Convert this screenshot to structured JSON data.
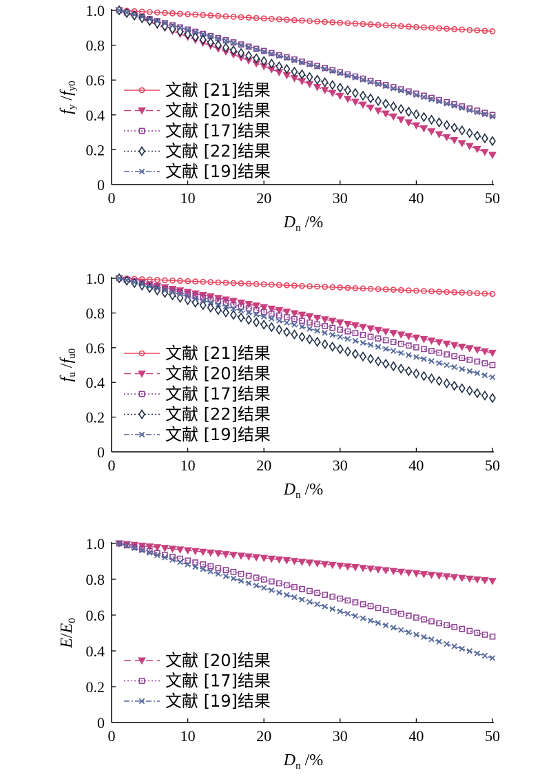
{
  "figure": {
    "legend_suffix": "结果"
  },
  "series_styles": {
    "21": {
      "color": "#e8455e",
      "marker": "circle",
      "dash": ""
    },
    "20": {
      "color": "#c9407f",
      "marker": "triangle-down",
      "dash": "10,6"
    },
    "17": {
      "color": "#8e3d94",
      "marker": "square",
      "dash": "2,3"
    },
    "22": {
      "color": "#1f2e45",
      "marker": "diamond",
      "dash": "2,3"
    },
    "19": {
      "color": "#55699a",
      "marker": "x",
      "dash": "8,3,2,3"
    }
  },
  "chart_data": [
    {
      "type": "line",
      "ylabel": {
        "main": "f",
        "sub1": "y",
        "sep": " /",
        "main2": "f",
        "sub2": "y0"
      },
      "xlabel": {
        "main": "D",
        "sub": "n",
        "suffix": " /%"
      },
      "xlim": [
        0,
        50
      ],
      "ylim": [
        0,
        1.0
      ],
      "xticks": [
        "0",
        "10",
        "20",
        "30",
        "40",
        "50"
      ],
      "yticks": [
        "0",
        "0.2",
        "0.4",
        "0.6",
        "0.8",
        "1.0"
      ],
      "legend_position": "left-middle",
      "x_range": [
        1,
        50
      ],
      "series": [
        {
          "name": "文献 [21]结果",
          "key": "21",
          "start": 1.0,
          "end": 0.88
        },
        {
          "name": "文献 [20]结果",
          "key": "20",
          "start": 1.0,
          "end": 0.17
        },
        {
          "name": "文献 [17]结果",
          "key": "17",
          "start": 1.0,
          "end": 0.4
        },
        {
          "name": "文献 [22]结果",
          "key": "22",
          "start": 1.0,
          "end": 0.25
        },
        {
          "name": "文献 [19]结果",
          "key": "19",
          "start": 1.0,
          "end": 0.39
        }
      ]
    },
    {
      "type": "line",
      "ylabel": {
        "main": "f",
        "sub1": "u",
        "sep": " /",
        "main2": "f",
        "sub2": "u0"
      },
      "xlabel": {
        "main": "D",
        "sub": "n",
        "suffix": " /%"
      },
      "xlim": [
        0,
        50
      ],
      "ylim": [
        0,
        1.0
      ],
      "xticks": [
        "0",
        "10",
        "20",
        "30",
        "40",
        "50"
      ],
      "yticks": [
        "0",
        "0.2",
        "0.4",
        "0.6",
        "0.8",
        "1.0"
      ],
      "legend_position": "left-bottom",
      "x_range": [
        1,
        50
      ],
      "series": [
        {
          "name": "文献 [21]结果",
          "key": "21",
          "start": 1.0,
          "end": 0.91
        },
        {
          "name": "文献 [20]结果",
          "key": "20",
          "start": 1.0,
          "end": 0.57
        },
        {
          "name": "文献 [17]结果",
          "key": "17",
          "start": 1.0,
          "end": 0.5
        },
        {
          "name": "文献 [22]结果",
          "key": "22",
          "start": 1.0,
          "end": 0.31
        },
        {
          "name": "文献 [19]结果",
          "key": "19",
          "start": 1.0,
          "end": 0.43
        }
      ]
    },
    {
      "type": "line",
      "ylabel": {
        "main": "E",
        "sub1": "",
        "sep": "/",
        "main2": "E",
        "sub2": "0"
      },
      "xlabel": {
        "main": "D",
        "sub": "n",
        "suffix": " /%"
      },
      "xlim": [
        0,
        50
      ],
      "ylim": [
        0,
        1.0
      ],
      "xticks": [
        "0",
        "10",
        "20",
        "30",
        "40",
        "50"
      ],
      "yticks": [
        "0",
        "0.2",
        "0.4",
        "0.6",
        "0.8",
        "1.0"
      ],
      "legend_position": "left-bottom",
      "x_range": [
        1,
        50
      ],
      "series": [
        {
          "name": "文献 [20]结果",
          "key": "20",
          "start": 1.0,
          "end": 0.79
        },
        {
          "name": "文献 [17]结果",
          "key": "17",
          "start": 1.0,
          "end": 0.48
        },
        {
          "name": "文献 [19]结果",
          "key": "19",
          "start": 1.0,
          "end": 0.36
        }
      ]
    }
  ]
}
